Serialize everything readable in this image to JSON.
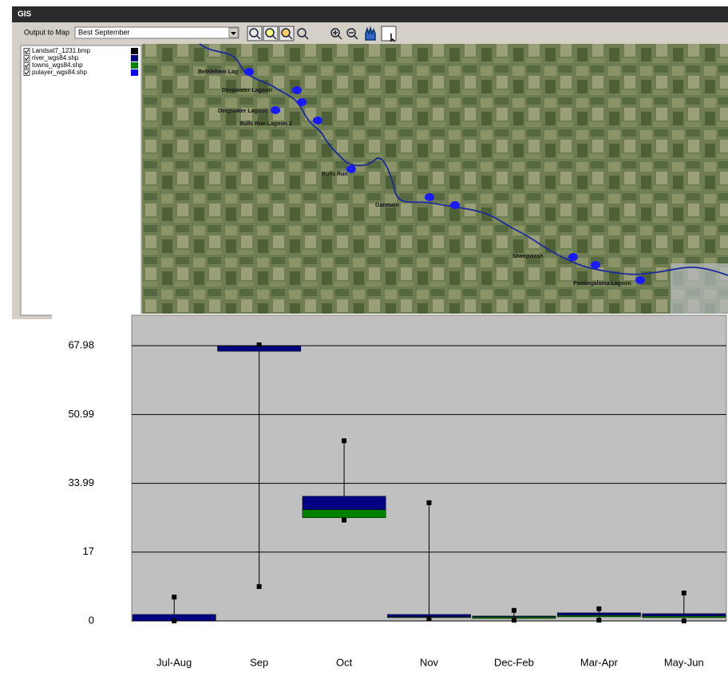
{
  "window": {
    "title": "GIS",
    "output_label": "Output to Map",
    "output_value": "Best September",
    "layers": [
      {
        "name": "Landsat7_1231.bmp",
        "color": "#000000"
      },
      {
        "name": "river_wgs84.shp",
        "color": "#000080"
      },
      {
        "name": "towns_wgs84.shp",
        "color": "#008000"
      },
      {
        "name": "pulayer_wgs84.shp",
        "color": "#0000ff"
      }
    ],
    "map_labels": [
      "Bethlehem Lag",
      "Deepwater Lagoon",
      "Deepwater Lagoon",
      "Bulls Run Lagoon 2",
      "Bulls Run",
      "Ganmain",
      "Sheepwash",
      "Pomingalama Lagoon"
    ]
  },
  "chart_data": {
    "type": "boxplot",
    "categories": [
      "Jul-Aug",
      "Sep",
      "Oct",
      "Nov",
      "Dec-Feb",
      "Mar-Apr",
      "May-Jun"
    ],
    "min": [
      0,
      8.5,
      24.9,
      0.6,
      0.2,
      0.2,
      0
    ],
    "q1": [
      0,
      66.6,
      25.5,
      0.8,
      0.6,
      1.0,
      0.8
    ],
    "median": [
      0,
      66.6,
      27.5,
      1.0,
      1.0,
      1.4,
      1.2
    ],
    "q3": [
      1.6,
      67.9,
      30.8,
      1.6,
      1.2,
      2.0,
      1.8
    ],
    "max": [
      5.9,
      68.2,
      44.5,
      29.2,
      2.6,
      3.0,
      6.9
    ],
    "upper_color": "#000080",
    "lower_color": "#008000",
    "ylim": [
      0,
      75.5
    ],
    "yticks": [
      0,
      17,
      33.99,
      50.99,
      67.98
    ],
    "grid": true
  }
}
